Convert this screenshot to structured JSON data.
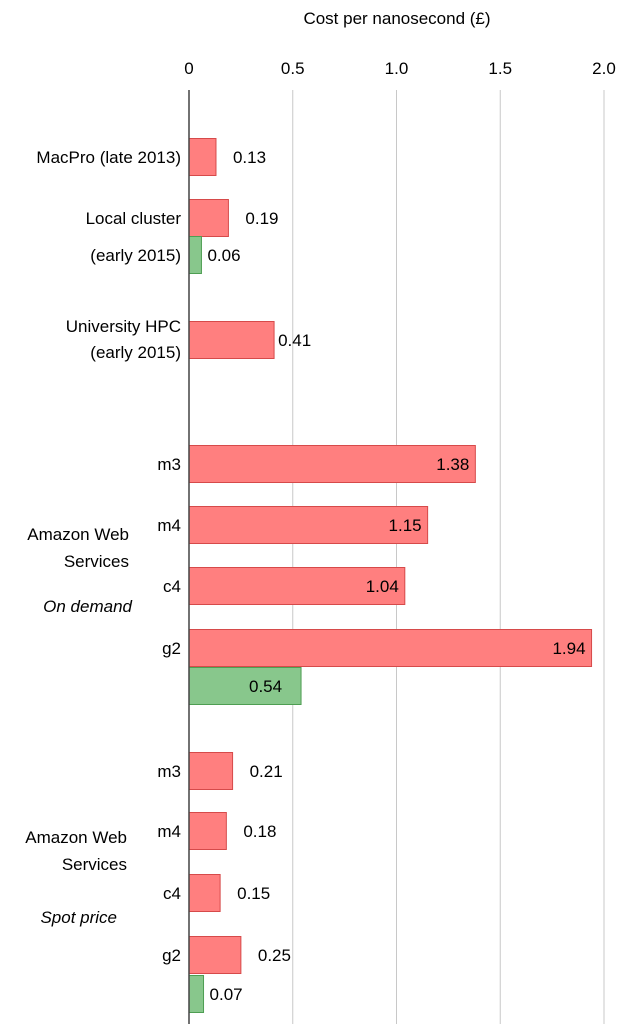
{
  "chart_data": {
    "type": "bar",
    "orientation": "horizontal",
    "xlabel": "Cost per nanosecond (£)",
    "xlim": [
      0,
      2.0
    ],
    "x_ticks": [
      "0",
      "0.5",
      "1.0",
      "1.5",
      "2.0"
    ],
    "x_axis_position": "top",
    "grid": true,
    "colors": {
      "red": "#FF7F7F",
      "green": "#88C78C",
      "red_border": "#D64A4A",
      "green_border": "#4E9E52",
      "grid": "#C8C8C8",
      "axis": "#444444"
    },
    "rows": [
      {
        "label": "MacPro (late 2013)",
        "value": 0.13,
        "display": "0.13",
        "color": "red"
      },
      {
        "label": "Local cluster",
        "value": 0.19,
        "display": "0.19",
        "color": "red"
      },
      {
        "label": "(early 2015)",
        "value": 0.06,
        "display": "0.06",
        "color": "green"
      },
      {
        "label": "University HPC",
        "value": 0.41,
        "display": "0.41",
        "color": "red"
      },
      {
        "label": "m3",
        "value": 1.38,
        "display": "1.38",
        "color": "red"
      },
      {
        "label": "m4",
        "value": 1.15,
        "display": "1.15",
        "color": "red"
      },
      {
        "label": "c4",
        "value": 1.04,
        "display": "1.04",
        "color": "red"
      },
      {
        "label": "g2",
        "value": 1.94,
        "display": "1.94",
        "color": "red"
      },
      {
        "label": "",
        "value": 0.54,
        "display": "0.54",
        "color": "green"
      },
      {
        "label": "m3",
        "value": 0.21,
        "display": "0.21",
        "color": "red"
      },
      {
        "label": "m4",
        "value": 0.18,
        "display": "0.18",
        "color": "red"
      },
      {
        "label": "c4",
        "value": 0.15,
        "display": "0.15",
        "color": "red"
      },
      {
        "label": "g2",
        "value": 0.25,
        "display": "0.25",
        "color": "red"
      },
      {
        "label": "",
        "value": 0.07,
        "display": "0.07",
        "color": "green"
      }
    ],
    "extra_labels": [
      {
        "text": "(early 2015)"
      }
    ],
    "groups": [
      {
        "title_lines": [
          "Amazon Web",
          "Services"
        ],
        "note": "On demand"
      },
      {
        "title_lines": [
          "Amazon Web",
          "Services"
        ],
        "note": "Spot price"
      }
    ]
  }
}
